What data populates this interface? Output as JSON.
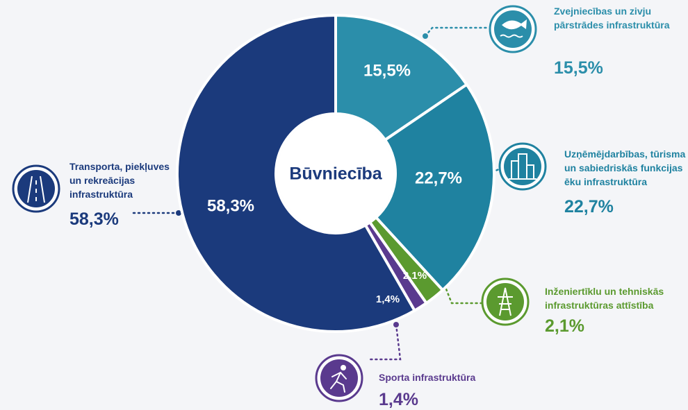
{
  "chart_data": {
    "type": "donut",
    "title": "Būvniecība",
    "categories": [
      "Zvejniecības un zivju pārstrādes infrastruktūra",
      "Uzņēmējdarbības, tūrisma un sabiedriskās funkcijas ēku infrastruktūra",
      "Inženiertīklu un tehniskās infrastruktūras attīstība",
      "Sporta infrastruktūra",
      "Transporta, piekļuves un rekreācijas infrastruktūra"
    ],
    "values": [
      15.5,
      22.7,
      2.1,
      1.4,
      58.3
    ],
    "value_labels": [
      "15,5%",
      "22,7%",
      "2,1%",
      "1,4%",
      "58,3%"
    ],
    "colors": [
      "#2b8eaa",
      "#1f82a0",
      "#5b9a2f",
      "#5a3a8e",
      "#1b3a7c"
    ]
  }
}
